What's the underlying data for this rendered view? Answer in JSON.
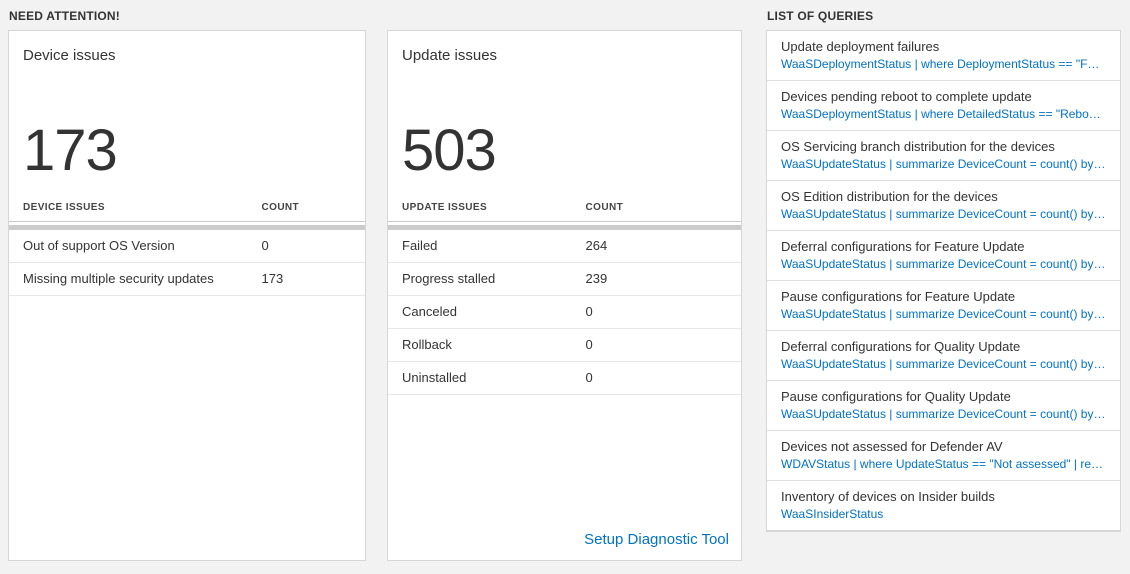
{
  "colors": {
    "page_background": "#f2f2f2",
    "link_blue": "#0072c6",
    "number_text": "#333333"
  },
  "sections": {
    "need_attention": "NEED ATTENTION!",
    "queries": "LIST OF QUERIES"
  },
  "device_card": {
    "title": "Device issues",
    "count": "173",
    "table": {
      "headers": [
        "DEVICE ISSUES",
        "COUNT"
      ],
      "rows": [
        {
          "label": "Out of support OS Version",
          "count": "0"
        },
        {
          "label": "Missing multiple security updates",
          "count": "173"
        }
      ]
    }
  },
  "update_card": {
    "title": "Update issues",
    "count": "503",
    "table": {
      "headers": [
        "UPDATE ISSUES",
        "COUNT"
      ],
      "rows": [
        {
          "label": "Failed",
          "count": "264"
        },
        {
          "label": "Progress stalled",
          "count": "239"
        },
        {
          "label": "Canceled",
          "count": "0"
        },
        {
          "label": "Rollback",
          "count": "0"
        },
        {
          "label": "Uninstalled",
          "count": "0"
        }
      ]
    },
    "footer_link": "Setup Diagnostic Tool"
  },
  "query_list": {
    "items": [
      {
        "title": "Update deployment failures",
        "query": "WaaSDeploymentStatus | where DeploymentStatus == \"Failed\" |..."
      },
      {
        "title": "Devices pending reboot to complete update",
        "query": "WaaSDeploymentStatus | where DetailedStatus == \"Reboot pend..."
      },
      {
        "title": "OS Servicing branch distribution for the devices",
        "query": "WaaSUpdateStatus | summarize DeviceCount = count() by OSSer..."
      },
      {
        "title": "OS Edition distribution for the devices",
        "query": "WaaSUpdateStatus | summarize DeviceCount = count() by OSEdit..."
      },
      {
        "title": "Deferral configurations for Feature Update",
        "query": "WaaSUpdateStatus | summarize DeviceCount = count() by Featur..."
      },
      {
        "title": "Pause configurations for Feature Update",
        "query": "WaaSUpdateStatus | summarize DeviceCount = count() by Featur..."
      },
      {
        "title": "Deferral configurations for Quality Update",
        "query": "WaaSUpdateStatus | summarize DeviceCount = count() by Qualit..."
      },
      {
        "title": "Pause configurations for Quality Update",
        "query": "WaaSUpdateStatus | summarize DeviceCount = count() by Qualit..."
      },
      {
        "title": "Devices not assessed for Defender AV",
        "query": "WDAVStatus | where UpdateStatus == \"Not assessed\" | render ta..."
      },
      {
        "title": "Inventory of devices on Insider builds",
        "query": "WaaSInsiderStatus"
      }
    ]
  }
}
